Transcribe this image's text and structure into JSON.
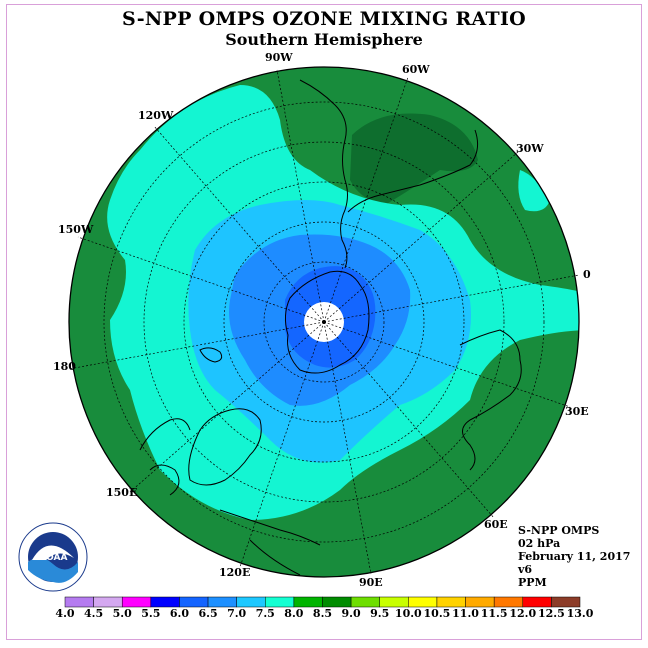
{
  "title": "S-NPP OMPS OZONE MIXING RATIO",
  "subtitle": "Southern Hemisphere",
  "longitude_labels": [
    "90W",
    "60W",
    "30W",
    "0",
    "30E",
    "60E",
    "90E",
    "120E",
    "150E",
    "180",
    "150W",
    "120W"
  ],
  "info": {
    "instrument": "S-NPP OMPS",
    "level": "02 hPa",
    "date": "February 11, 2017",
    "version": "v6",
    "units": "PPM"
  },
  "logo_text": "NOAA",
  "colorbar": {
    "ticks": [
      "4.0",
      "4.5",
      "5.0",
      "5.5",
      "6.0",
      "6.5",
      "7.0",
      "7.5",
      "8.0",
      "8.5",
      "9.0",
      "9.5",
      "10.0",
      "10.5",
      "11.0",
      "11.5",
      "12.0",
      "12.5",
      "13.0"
    ],
    "colors": [
      "#b57cf0",
      "#d4a8f0",
      "#ff00ff",
      "#0000ff",
      "#1464ff",
      "#1e90ff",
      "#1ec8ff",
      "#14ffd2",
      "#00b400",
      "#008c00",
      "#6ede00",
      "#c8ff00",
      "#ffff00",
      "#ffd200",
      "#ffaa00",
      "#ff7800",
      "#ff0000",
      "#8c3c28"
    ]
  },
  "map_colors": {
    "band_8_0": "#188c3c",
    "band_8_5": "#0e6e2e",
    "band_7_5": "#14f5d2",
    "band_7_0": "#1ec4ff",
    "band_6_5": "#1e8cff",
    "band_6_0": "#1466ff",
    "pole": "#ffffff"
  }
}
